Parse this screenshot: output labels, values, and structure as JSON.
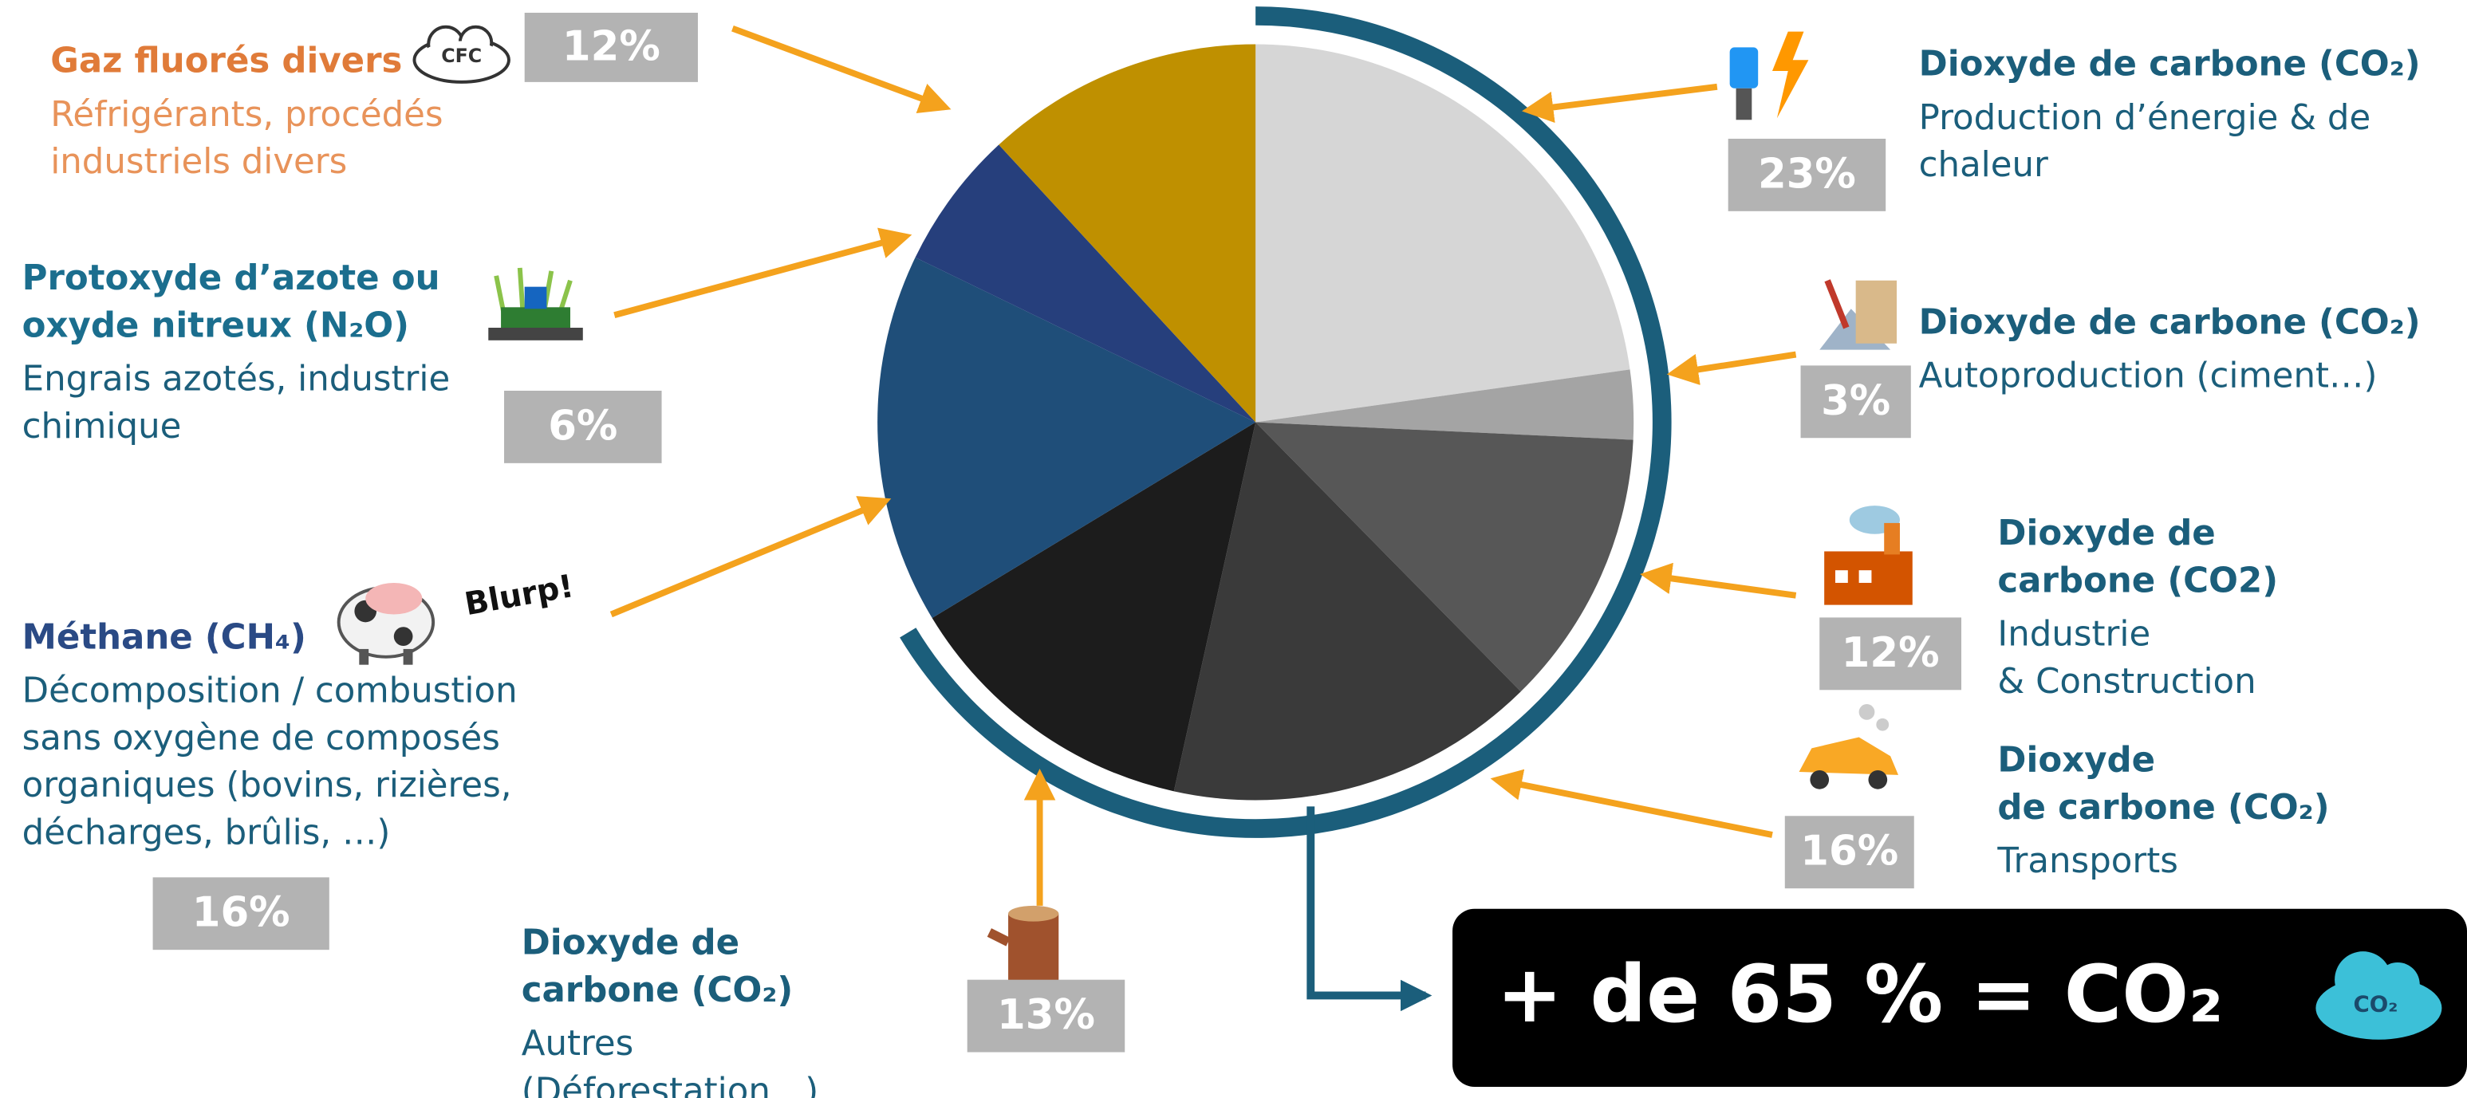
{
  "chart_data": {
    "type": "pie",
    "categories": [
      [
        "Dioxyde de carbone (CO₂)"
      ],
      [
        "Dioxyde de carbone (CO₂)"
      ],
      [
        "Dioxyde de",
        "carbone (CO2)"
      ],
      [
        "Dioxyde",
        "de carbone (CO₂)"
      ],
      [
        "Dioxyde de",
        "carbone (CO₂)"
      ],
      [
        "Méthane (CH₄)"
      ],
      [
        "Protoxyde d’azote ou",
        "oxyde nitreux (N₂O)"
      ],
      [
        "Gaz fluorés divers"
      ]
    ],
    "descriptions": [
      [
        "Production d’énergie & de",
        "chaleur"
      ],
      [
        "Autoproduction (ciment…)"
      ],
      [
        "Industrie",
        "& Construction"
      ],
      [
        "Transports"
      ],
      [
        "Autres",
        "(Déforestation…)"
      ],
      [
        "Décomposition / combustion",
        "sans oxygène de composés",
        "organiques (bovins, rizières,",
        "décharges, brûlis, …)"
      ],
      [
        "Engrais azotés, industrie",
        "chimique"
      ],
      [
        "Réfrigérants, procédés",
        "industriels divers"
      ]
    ],
    "values": [
      23,
      3,
      12,
      16,
      13,
      16,
      6,
      12
    ],
    "value_labels": [
      "23%",
      "3%",
      "12%",
      "16%",
      "13%",
      "16%",
      "6%",
      "12%"
    ],
    "colors": [
      "#d6d6d6",
      "#a4a4a4",
      "#575757",
      "#3a3a3a",
      "#1c1c1c",
      "#1f4e79",
      "#263f7c",
      "#bf9000"
    ],
    "annotation": "+ de 65 % = CO₂",
    "icon_texts": [
      "CFC",
      "Blurp!",
      "CO₂"
    ]
  }
}
